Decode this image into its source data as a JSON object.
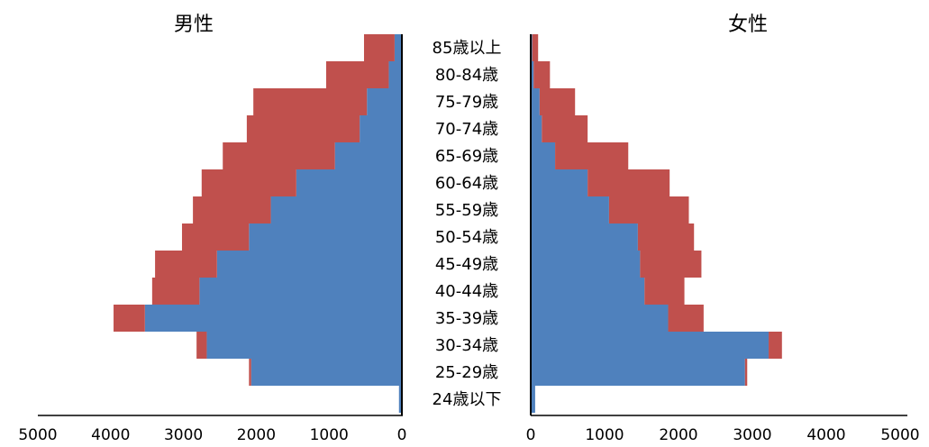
{
  "chart_data": {
    "type": "bar",
    "layout": "population-pyramid",
    "stacked": true,
    "categories": [
      "85歳以上",
      "80-84歳",
      "75-79歳",
      "70-74歳",
      "65-69歳",
      "60-64歳",
      "55-59歳",
      "50-54歳",
      "45-49歳",
      "40-44歳",
      "35-39歳",
      "30-34歳",
      "25-29歳",
      "24歳以下"
    ],
    "panels": [
      {
        "title": "男性",
        "direction": "left",
        "xlim": [
          0,
          5000
        ],
        "ticks": [
          "5000",
          "4000",
          "3000",
          "2000",
          "1000",
          "0"
        ],
        "series": [
          {
            "color": "#4f81bd",
            "values": [
              100,
              180,
              480,
              580,
              920,
              1450,
              1800,
              2100,
              2540,
              2780,
              3530,
              2680,
              2070,
              40
            ]
          },
          {
            "color": "#c0504d",
            "values": [
              420,
              860,
              1560,
              1550,
              1540,
              1300,
              1070,
              920,
              850,
              650,
              430,
              140,
              30,
              0
            ]
          }
        ]
      },
      {
        "title": "女性",
        "direction": "right",
        "xlim": [
          0,
          5000
        ],
        "ticks": [
          "0",
          "1000",
          "2000",
          "3000",
          "4000",
          "5000"
        ],
        "series": [
          {
            "color": "#4f81bd",
            "values": [
              20,
              40,
              120,
              150,
              330,
              770,
              1060,
              1450,
              1480,
              1540,
              1860,
              3220,
              2900,
              60
            ]
          },
          {
            "color": "#c0504d",
            "values": [
              80,
              220,
              480,
              620,
              990,
              1110,
              1080,
              760,
              830,
              540,
              480,
              180,
              30,
              0
            ]
          }
        ]
      }
    ]
  }
}
